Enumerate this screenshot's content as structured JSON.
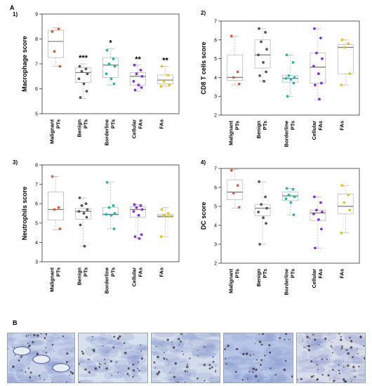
{
  "figure": {
    "panel_a_label": "A",
    "panel_b_label": "B",
    "colors": {
      "malignant": "#e05a3a",
      "benign": "#555555",
      "borderline": "#25b8a8",
      "cellular": "#8a2be2",
      "fas": "#e8c21a",
      "box": "#bbbbbb",
      "median": "#777777"
    },
    "micrographs": [
      {
        "label": "benign-phyllodes-tissue-micrograph",
        "tone": "#c9d3ea"
      },
      {
        "label": "tissue-micrograph-2",
        "tone": "#d6e0ee"
      },
      {
        "label": "tissue-micrograph-3",
        "tone": "#d2dcec"
      },
      {
        "label": "tissue-micrograph-4",
        "tone": "#b7c6e6"
      },
      {
        "label": "tissue-micrograph-5",
        "tone": "#d9dde9"
      }
    ]
  },
  "chart_data": [
    {
      "id": "p1",
      "panel_label": "1)",
      "type": "box",
      "ylabel": "Macrophage score",
      "ylim": [
        5,
        9
      ],
      "yticks": [
        5,
        6,
        7,
        8,
        9
      ],
      "categories": [
        "Malignant PTs",
        "Benign PTs",
        "Borderline PTs",
        "Cellular FAs",
        "FAs"
      ],
      "significance": [
        "",
        "***",
        "*",
        "**",
        "**"
      ],
      "boxes": [
        {
          "min": 6.9,
          "q1": 7.25,
          "median": 7.9,
          "q3": 8.35,
          "max": 8.45
        },
        {
          "min": 5.6,
          "q1": 6.25,
          "median": 6.65,
          "q3": 6.85,
          "max": 7.0
        },
        {
          "min": 6.15,
          "q1": 6.45,
          "median": 6.95,
          "q3": 7.25,
          "max": 7.6
        },
        {
          "min": 5.9,
          "q1": 6.15,
          "median": 6.5,
          "q3": 6.65,
          "max": 6.95
        },
        {
          "min": 6.1,
          "q1": 6.2,
          "median": 6.35,
          "q3": 6.55,
          "max": 6.9
        }
      ],
      "points": [
        [
          8.3,
          8.4,
          7.5,
          6.9
        ],
        [
          6.9,
          6.8,
          6.7,
          6.6,
          6.4,
          6.2,
          5.9,
          5.65
        ],
        [
          7.55,
          7.2,
          7.0,
          6.9,
          6.6,
          6.4,
          6.2
        ],
        [
          6.95,
          6.75,
          6.6,
          6.5,
          6.3,
          6.15,
          6.05,
          5.95
        ],
        [
          6.9,
          6.55,
          6.3,
          6.15,
          6.1
        ]
      ]
    },
    {
      "id": "p2",
      "panel_label": "2)",
      "type": "box",
      "ylabel": "CD8 T cells score",
      "ylim": [
        2,
        7
      ],
      "yticks": [
        2,
        3,
        4,
        5,
        6,
        7
      ],
      "categories": [
        "Malignant PTs",
        "Benign PTs",
        "Borderline PTs",
        "Cellular FAs",
        "FAs"
      ],
      "significance": [
        "",
        "",
        "",
        "",
        ""
      ],
      "boxes": [
        {
          "min": 3.6,
          "q1": 3.85,
          "median": 4.0,
          "q3": 5.2,
          "max": 6.2
        },
        {
          "min": 3.8,
          "q1": 4.5,
          "median": 5.2,
          "q3": 6.0,
          "max": 6.6
        },
        {
          "min": 3.0,
          "q1": 3.75,
          "median": 3.95,
          "q3": 4.1,
          "max": 5.2
        },
        {
          "min": 2.8,
          "q1": 3.7,
          "median": 4.55,
          "q3": 5.3,
          "max": 6.6
        },
        {
          "min": 3.6,
          "q1": 4.2,
          "median": 5.6,
          "q3": 5.75,
          "max": 6.0
        }
      ],
      "points": [
        [
          6.2,
          4.3,
          4.0,
          3.65
        ],
        [
          6.6,
          6.4,
          5.9,
          5.5,
          5.2,
          4.8,
          4.3,
          4.1,
          3.8
        ],
        [
          5.2,
          4.8,
          4.1,
          4.0,
          3.95,
          3.9,
          3.7,
          3.0
        ],
        [
          6.6,
          6.1,
          5.3,
          5.0,
          4.6,
          4.2,
          3.7,
          3.6,
          2.85
        ],
        [
          6.0,
          5.8,
          5.6,
          4.2,
          3.6
        ]
      ]
    },
    {
      "id": "p3",
      "panel_label": "3)",
      "type": "box",
      "ylabel": "Neutrophils score",
      "ylim": [
        3,
        8
      ],
      "yticks": [
        3,
        4,
        5,
        6,
        7,
        8
      ],
      "categories": [
        "Malignant PTs",
        "Benign PTs",
        "Borderline PTs",
        "Cellular FAs",
        "FAs"
      ],
      "significance": [
        "",
        "",
        "",
        "",
        ""
      ],
      "boxes": [
        {
          "min": 4.65,
          "q1": 5.15,
          "median": 5.7,
          "q3": 6.6,
          "max": 7.4
        },
        {
          "min": 3.8,
          "q1": 5.2,
          "median": 5.6,
          "q3": 5.75,
          "max": 6.3
        },
        {
          "min": 4.7,
          "q1": 5.4,
          "median": 5.45,
          "q3": 5.8,
          "max": 7.1
        },
        {
          "min": 4.2,
          "q1": 5.3,
          "median": 5.7,
          "q3": 5.85,
          "max": 5.95
        },
        {
          "min": 4.3,
          "q1": 5.3,
          "median": 5.35,
          "q3": 5.45,
          "max": 5.8
        }
      ],
      "points": [
        [
          7.4,
          5.8,
          5.7,
          4.7
        ],
        [
          6.3,
          6.0,
          5.9,
          5.7,
          5.6,
          5.5,
          5.3,
          4.9,
          3.8
        ],
        [
          7.1,
          5.9,
          5.8,
          5.5,
          5.45,
          5.4,
          4.7
        ],
        [
          5.95,
          5.9,
          5.8,
          5.7,
          5.6,
          5.4,
          4.4,
          4.3,
          4.2
        ],
        [
          5.7,
          5.5,
          5.4,
          5.35,
          4.3
        ]
      ]
    },
    {
      "id": "p4",
      "panel_label": "4)",
      "type": "box",
      "ylabel": "DC score",
      "ylim": [
        2,
        7
      ],
      "yticks": [
        2,
        3,
        4,
        5,
        6,
        7
      ],
      "categories": [
        "Malignant PTs",
        "Benign PTs",
        "Borderline PTs",
        "Cellular FAs",
        "FAs"
      ],
      "significance": [
        "",
        "",
        "",
        "",
        ""
      ],
      "boxes": [
        {
          "min": 4.9,
          "q1": 5.35,
          "median": 5.75,
          "q3": 6.4,
          "max": 6.95
        },
        {
          "min": 3.0,
          "q1": 4.5,
          "median": 4.9,
          "q3": 5.1,
          "max": 6.3
        },
        {
          "min": 4.55,
          "q1": 5.3,
          "median": 5.55,
          "q3": 5.75,
          "max": 5.95
        },
        {
          "min": 2.8,
          "q1": 4.25,
          "median": 4.65,
          "q3": 4.8,
          "max": 5.5
        },
        {
          "min": 3.6,
          "q1": 4.6,
          "median": 5.0,
          "q3": 5.65,
          "max": 6.1
        }
      ],
      "points": [
        [
          6.9,
          6.1,
          5.7,
          4.95
        ],
        [
          6.3,
          5.5,
          5.1,
          4.9,
          4.7,
          4.4,
          4.1,
          3.0
        ],
        [
          5.95,
          5.9,
          5.6,
          5.5,
          5.4,
          5.2,
          4.55
        ],
        [
          5.5,
          5.2,
          4.8,
          4.7,
          4.6,
          4.3,
          3.8,
          2.8
        ],
        [
          6.1,
          5.6,
          5.2,
          4.8,
          3.6
        ]
      ]
    }
  ]
}
